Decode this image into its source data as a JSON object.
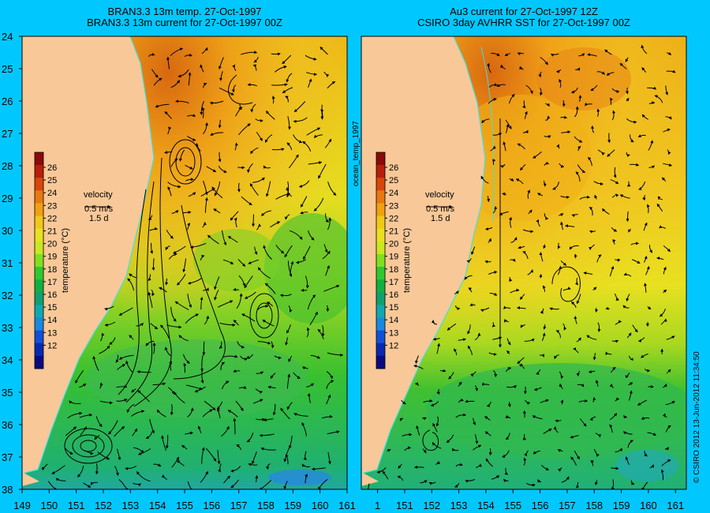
{
  "panels": [
    {
      "title_line1": "BRAN3.3 13m temp. 27-Oct-1997",
      "title_line2": "BRAN3.3 13m current for 27-Oct-1997 00Z"
    },
    {
      "title_line1": "Au3 current for 27-Oct-1997 12Z",
      "title_line2": "CSIRO 3day AVHRR SST for 27-Oct-1997 00Z"
    }
  ],
  "layer_label": "ocean_temp_1997",
  "copyright": "© CSIRO 2012   13-Jun-2012 11:34:50",
  "legend": {
    "velocity_label": "velocity",
    "velocity_scale": "0.5 m/s",
    "time_scale": "1.5 d",
    "colorbar_label": "temperature (°C)",
    "colorbar_ticks": [
      "26",
      "25",
      "24",
      "23",
      "22",
      "21",
      "20",
      "19",
      "18",
      "17",
      "16",
      "15",
      "14",
      "13",
      "12"
    ],
    "colorbar_colors": [
      "#8b0a0a",
      "#b81e0c",
      "#d8460c",
      "#e87810",
      "#f0a010",
      "#f0c818",
      "#e8e020",
      "#c8e820",
      "#80e020",
      "#30c830",
      "#10b040",
      "#10a070",
      "#10a8b0",
      "#1888e0",
      "#1050d8",
      "#0828b0",
      "#0a0a80"
    ]
  },
  "axes": {
    "lat_labels": [
      "24",
      "25",
      "26",
      "27",
      "28",
      "29",
      "30",
      "31",
      "32",
      "33",
      "34",
      "35",
      "36",
      "37",
      "38"
    ],
    "lon_labels_left": [
      "149",
      "150",
      "151",
      "152",
      "153",
      "154",
      "155",
      "156",
      "157",
      "158",
      "159",
      "160",
      "161"
    ],
    "lon_labels_right": [
      "1",
      "151",
      "152",
      "153",
      "154",
      "155",
      "156",
      "157",
      "158",
      "159",
      "160",
      "161"
    ]
  },
  "colors": {
    "background": "#00c8ff",
    "land": "#f8c898",
    "coastline": "#40e0e0"
  }
}
